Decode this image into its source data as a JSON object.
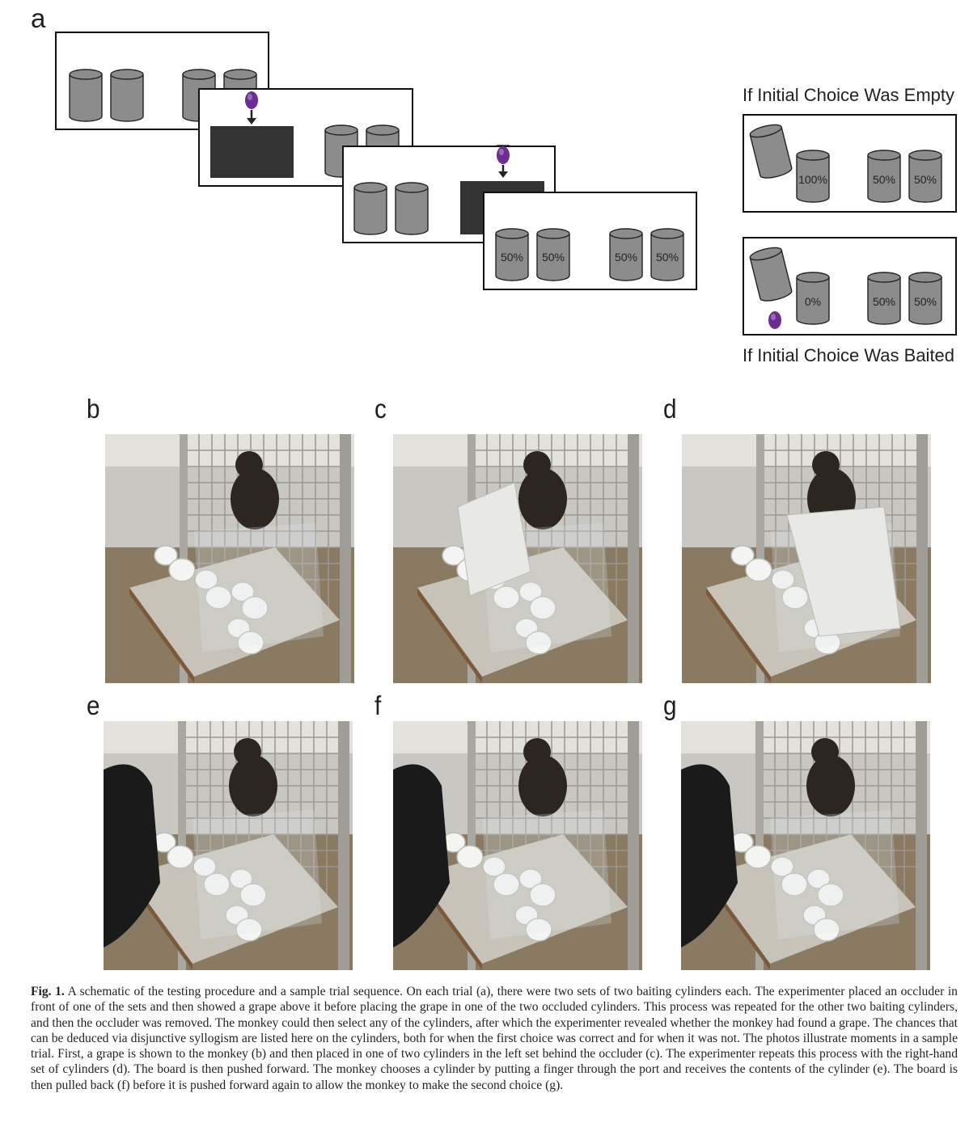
{
  "panel_a": {
    "letter": "a",
    "empty_title": "If Initial Choice Was Empty",
    "baited_title": "If Initial Choice Was Baited",
    "final_labels": [
      "50%",
      "50%",
      "50%",
      "50%"
    ],
    "empty_labels": [
      "100%",
      "50%",
      "50%"
    ],
    "baited_labels": [
      "0%",
      "50%",
      "50%"
    ],
    "colors": {
      "cylinder": "#8c8c8c",
      "occluder": "#333333",
      "grape": "#6b2d8f"
    }
  },
  "photos": [
    {
      "letter": "b",
      "description_icon": "photo-grape-shown"
    },
    {
      "letter": "c",
      "description_icon": "photo-occluder-left"
    },
    {
      "letter": "d",
      "description_icon": "photo-occluder-right"
    },
    {
      "letter": "e",
      "description_icon": "photo-board-pushed"
    },
    {
      "letter": "f",
      "description_icon": "photo-board-pulled"
    },
    {
      "letter": "g",
      "description_icon": "photo-second-choice"
    }
  ],
  "caption": {
    "label": "Fig. 1.",
    "text": "A schematic of the testing procedure and a sample trial sequence. On each trial (a), there were two sets of two baiting cylinders each. The experimenter placed an occluder in front of one of the sets and then showed a grape above it before placing the grape in one of the two occluded cylinders. This process was repeated for the other two baiting cylinders, and then the occluder was removed. The monkey could then select any of the cylinders, after which the experimenter revealed whether the monkey had found a grape. The chances that can be deduced via disjunctive syllogism are listed here on the cylinders, both for when the first choice was correct and for when it was not. The photos illustrate moments in a sample trial. First, a grape is shown to the monkey (b) and then placed in one of two cylinders in the left set behind the occluder (c). The experimenter repeats this process with the right-hand set of cylinders (d). The board is then pushed forward. The monkey chooses a cylinder by putting a finger through the port and receives the contents of the cylinder (e). The board is then pulled back (f) before it is pushed forward again to allow the monkey to make the second choice (g)."
  }
}
